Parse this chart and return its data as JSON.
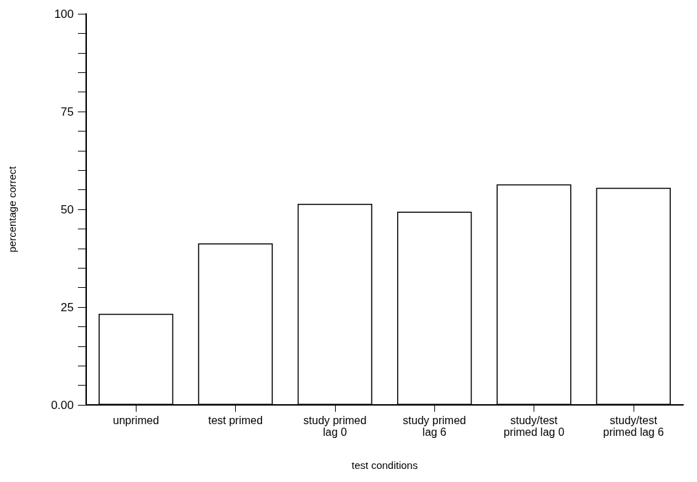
{
  "chart_data": {
    "type": "bar",
    "xlabel": "test conditions",
    "ylabel": "percentage correct",
    "categories": [
      "unprimed",
      "test primed",
      "study primed\nlag 0",
      "study primed\nlag 6",
      "study/test\nprimed lag 0",
      "study/test\nprimed lag 6"
    ],
    "values": [
      23.3,
      41.3,
      51.4,
      49.4,
      56.4,
      55.5
    ],
    "color": "#ffffff",
    "ylim": [
      0,
      100
    ],
    "yticks": [
      {
        "value": 0,
        "label": "0.00"
      },
      {
        "value": 5,
        "label": null
      },
      {
        "value": 10,
        "label": null
      },
      {
        "value": 15,
        "label": null
      },
      {
        "value": 20,
        "label": null
      },
      25,
      {
        "value": 30,
        "label": null
      },
      {
        "value": 35,
        "label": null
      },
      {
        "value": 40,
        "label": null
      },
      {
        "value": 45,
        "label": null
      },
      50,
      {
        "value": 55,
        "label": null
      },
      {
        "value": 60,
        "label": null
      },
      {
        "value": 65,
        "label": null
      },
      {
        "value": 70,
        "label": null
      },
      75,
      {
        "value": 80,
        "label": null
      },
      {
        "value": 85,
        "label": null
      },
      {
        "value": 90,
        "label": null
      },
      {
        "value": 95,
        "label": null
      },
      100
    ]
  }
}
